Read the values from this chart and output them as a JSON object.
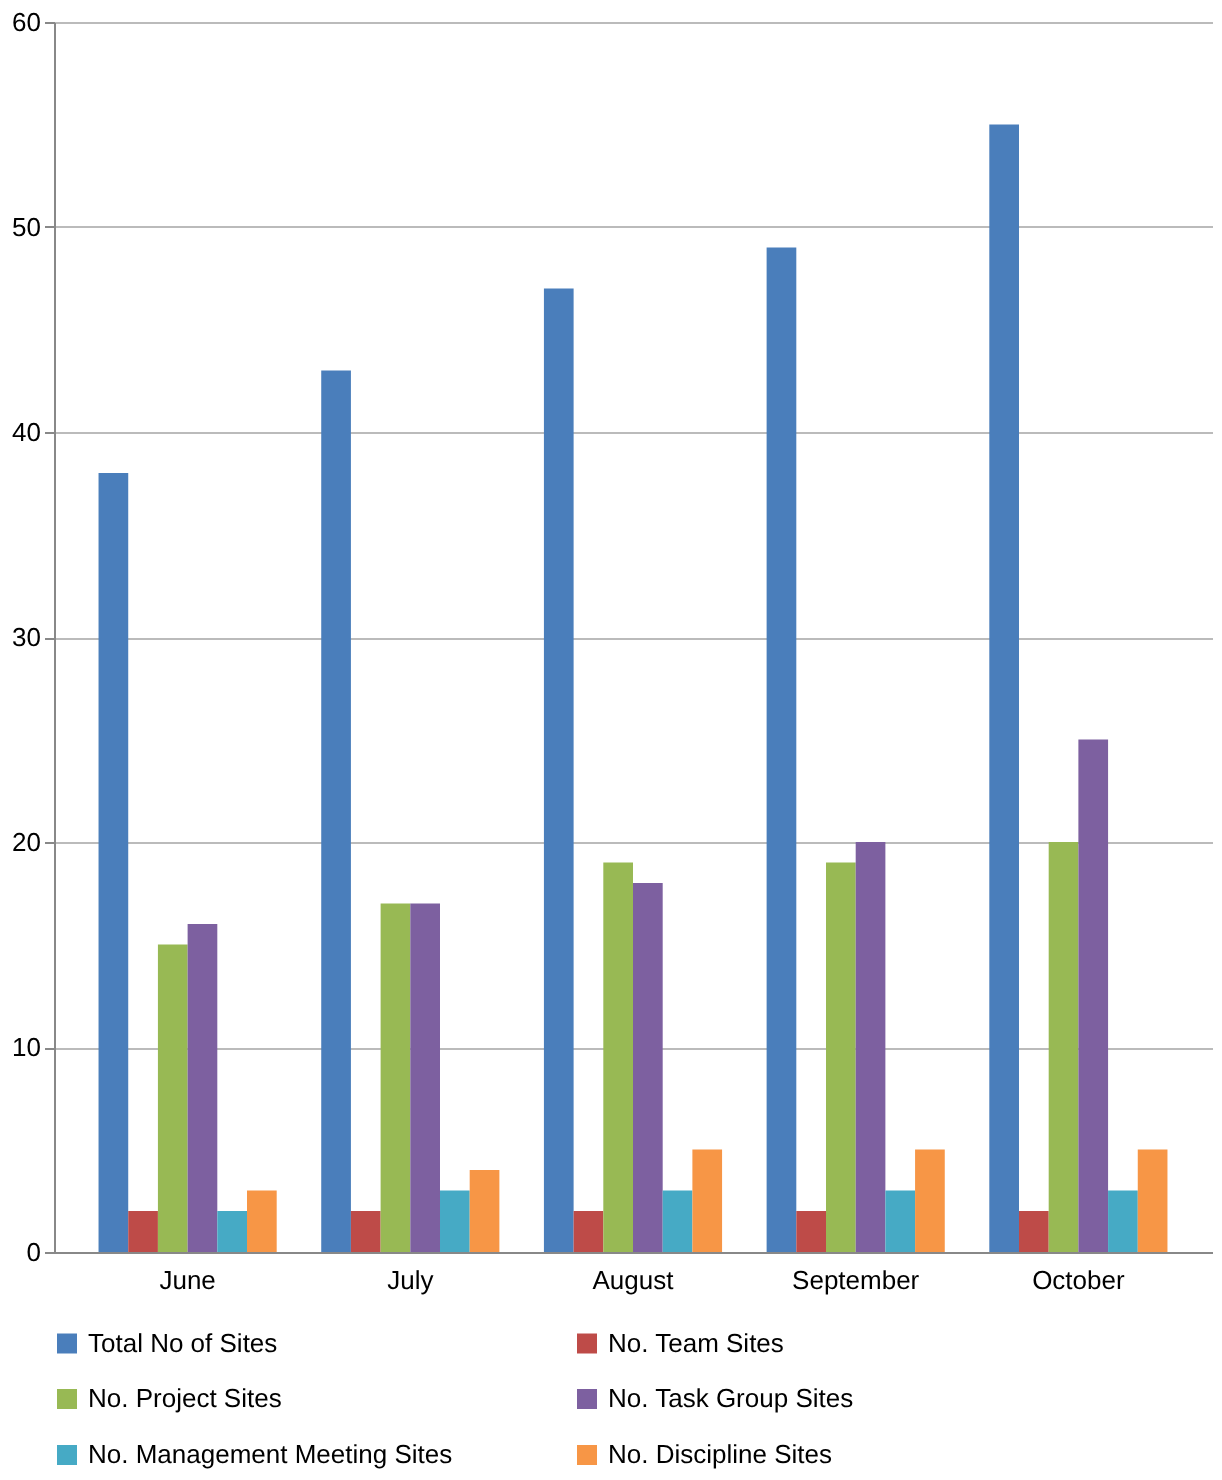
{
  "chart_data": {
    "type": "bar",
    "categories": [
      "June",
      "July",
      "August",
      "September",
      "October"
    ],
    "series": [
      {
        "name": "Total No of Sites",
        "color": "#4a7ebb",
        "values": [
          38,
          43,
          47,
          49,
          55
        ]
      },
      {
        "name": "No. Team Sites",
        "color": "#be4b48",
        "values": [
          2,
          2,
          2,
          2,
          2
        ]
      },
      {
        "name": "No. Project Sites",
        "color": "#98b954",
        "values": [
          15,
          17,
          19,
          19,
          20
        ]
      },
      {
        "name": "No. Task Group Sites",
        "color": "#7d60a0",
        "values": [
          16,
          17,
          18,
          20,
          25
        ]
      },
      {
        "name": "No. Management Meeting Sites",
        "color": "#46aac5",
        "values": [
          2,
          3,
          3,
          3,
          3
        ]
      },
      {
        "name": "No. Discipline Sites",
        "color": "#f79646",
        "values": [
          3,
          4,
          5,
          5,
          5
        ]
      }
    ],
    "ylim": [
      0,
      60
    ],
    "yticks": [
      0,
      10,
      20,
      30,
      40,
      50,
      60
    ],
    "grid": "y",
    "legend": "bottom"
  }
}
